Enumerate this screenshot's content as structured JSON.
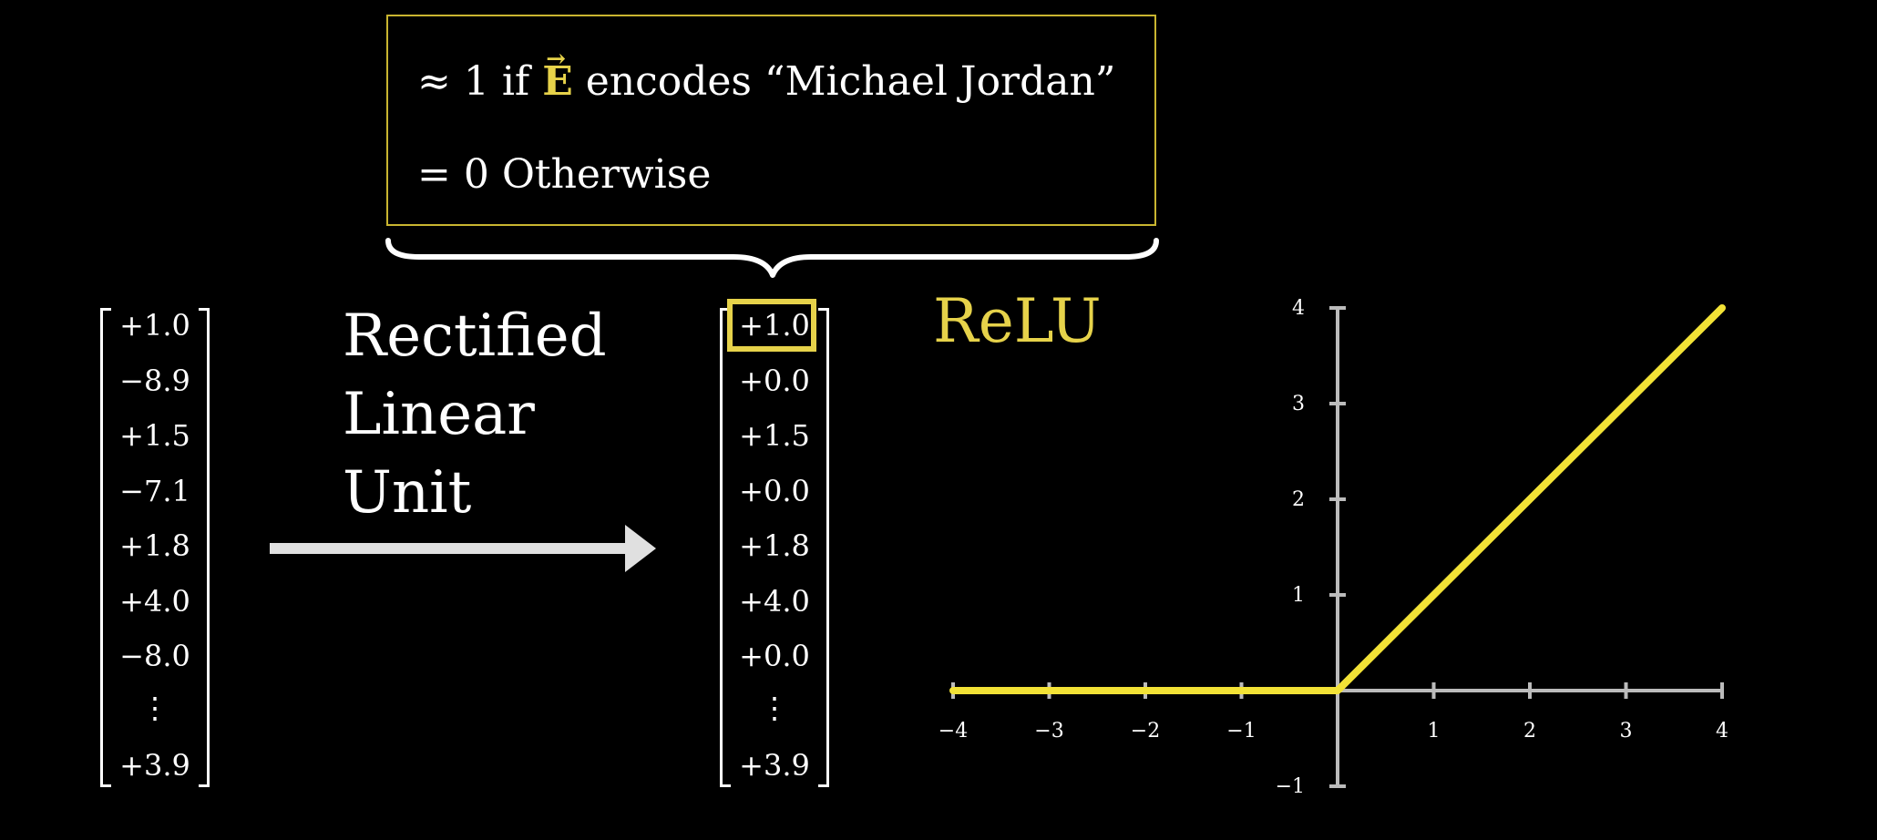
{
  "note": {
    "line1_prefix": "≈ 1 if ",
    "line1_vector": "E",
    "line1_suffix": " encodes “Michael Jordan”",
    "line2": "= 0 Otherwise",
    "border_color": "#c9b530"
  },
  "input_vector": {
    "entries": [
      "+1.0",
      "−8.9",
      "+1.5",
      "−7.1",
      "+1.8",
      "+4.0",
      "−8.0",
      "⋮",
      "+3.9"
    ]
  },
  "output_vector": {
    "entries": [
      "+1.0",
      "+0.0",
      "+1.5",
      "+0.0",
      "+1.8",
      "+4.0",
      "+0.0",
      "⋮",
      "+3.9"
    ],
    "highlighted_index": 0
  },
  "transform_label": {
    "line1": "Rectified",
    "line2": "Linear",
    "line3": "Unit"
  },
  "chart_data": {
    "type": "line",
    "title": "ReLU",
    "xlabel": "",
    "ylabel": "",
    "xlim": [
      -4,
      4
    ],
    "ylim": [
      -1,
      4
    ],
    "x_ticks": [
      -4,
      -3,
      -2,
      -1,
      1,
      2,
      3,
      4
    ],
    "x_tick_labels": [
      "−4",
      "−3",
      "−2",
      "−1",
      "1",
      "2",
      "3",
      "4"
    ],
    "y_ticks": [
      -1,
      1,
      2,
      3,
      4
    ],
    "y_tick_labels": [
      "−1",
      "1",
      "2",
      "3",
      "4"
    ],
    "grid": false,
    "series": [
      {
        "x": [
          -4,
          0,
          4
        ],
        "y": [
          0,
          0,
          4
        ],
        "color": "#f2e236"
      }
    ],
    "axis_color": "#bbbbbb"
  },
  "colors": {
    "background": "#000000",
    "accent_yellow": "#e6d24a",
    "text": "#ffffff"
  }
}
